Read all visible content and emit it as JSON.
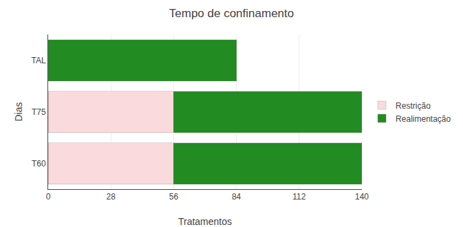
{
  "chart_data": {
    "type": "bar",
    "orientation": "horizontal",
    "stacked": true,
    "title": "Tempo de confinamento",
    "xlabel": "Tratamentos",
    "ylabel": "Dias",
    "categories": [
      "T60",
      "T75",
      "TAL"
    ],
    "series": [
      {
        "name": "Restrição",
        "color": "#FADADC",
        "values": [
          56,
          56,
          0
        ]
      },
      {
        "name": "Realimentação",
        "color": "#228B22",
        "values": [
          84,
          84,
          84
        ]
      }
    ],
    "xlim": [
      0,
      140
    ],
    "xticks": [
      0,
      28,
      56,
      84,
      112,
      140
    ],
    "grid": true,
    "legend": "right"
  }
}
